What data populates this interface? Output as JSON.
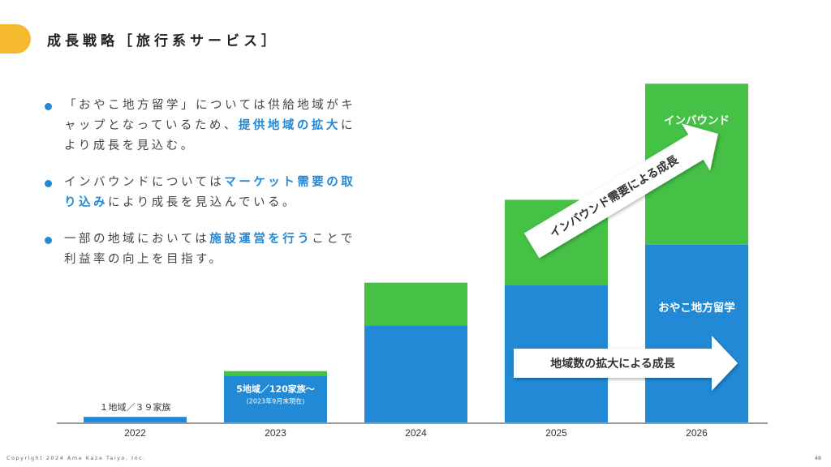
{
  "header": {
    "title": "成長戦略［旅行系サービス］"
  },
  "bullets": [
    {
      "parts": [
        {
          "t": "「おやこ地方留学」については供給地域がキャップとなっているため、",
          "hl": false
        },
        {
          "t": "提供地域の拡大",
          "hl": true
        },
        {
          "t": "により成長を見込む。",
          "hl": false
        }
      ]
    },
    {
      "parts": [
        {
          "t": "インバウンドについては",
          "hl": false
        },
        {
          "t": "マーケット需要の取り込み",
          "hl": true
        },
        {
          "t": "により成長を見込んでいる。",
          "hl": false
        }
      ]
    },
    {
      "parts": [
        {
          "t": "一部の地域においては",
          "hl": false
        },
        {
          "t": "施設運営を行う",
          "hl": true
        },
        {
          "t": "ことで利益率の向上を目指す。",
          "hl": false
        }
      ]
    }
  ],
  "chart_data": {
    "type": "bar",
    "stacked": true,
    "categories": [
      "2022",
      "2023",
      "2024",
      "2025",
      "2026"
    ],
    "series": [
      {
        "name": "おやこ地方留学",
        "color": "#2289d6",
        "values": [
          8,
          60,
          124,
          175,
          226
        ]
      },
      {
        "name": "インバウンド",
        "color": "#45c145",
        "values": [
          0,
          6,
          54,
          108,
          204
        ]
      }
    ],
    "ylim": [
      0,
      460
    ],
    "data_labels": [
      {
        "category": "2022",
        "text": "１地域／３９家族",
        "sub": ""
      },
      {
        "category": "2023",
        "text": "5地域／120家族〜",
        "sub": "(2023年9月末現在)"
      }
    ],
    "segment_labels": [
      {
        "category": "2026",
        "series": "インバウンド",
        "text": "インバウンド"
      },
      {
        "category": "2026",
        "series": "おやこ地方留学",
        "text": "おやこ地方留学"
      }
    ],
    "annotations": [
      {
        "text": "インバウンド需要による成長",
        "direction": "diagonal-up"
      },
      {
        "text": "地域数の拡大による成長",
        "direction": "horizontal"
      }
    ],
    "colors": {
      "baseline": "#9a9a9a",
      "arrow_fill": "#ffffff",
      "arrow_text": "#333333"
    }
  },
  "footer": {
    "copyright": "Copyright 2024 Ame Kaze Taiyo, Inc.",
    "page_number": "48"
  }
}
